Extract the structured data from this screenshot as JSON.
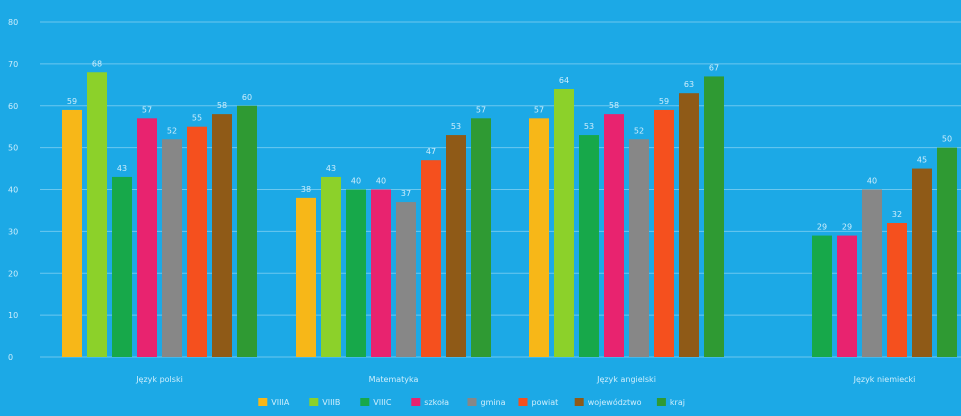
{
  "chart_data": {
    "type": "bar",
    "title": "",
    "xlabel": "",
    "ylabel": "",
    "ylim": [
      0,
      80
    ],
    "yticks": [
      0,
      10,
      20,
      30,
      40,
      50,
      60,
      70,
      80
    ],
    "grid": true,
    "legend_position": "bottom",
    "categories": [
      "Język polski",
      "Matematyka",
      "Język angielski",
      "Język niemiecki"
    ],
    "series": [
      {
        "name": "VIIIA",
        "color": "#f7b718",
        "values": [
          59,
          38,
          57,
          null
        ]
      },
      {
        "name": "VIIIB",
        "color": "#8cd12a",
        "values": [
          68,
          43,
          64,
          null
        ]
      },
      {
        "name": "VIIIC",
        "color": "#17a84a",
        "values": [
          43,
          40,
          53,
          29
        ]
      },
      {
        "name": "szkoła",
        "color": "#e8236f",
        "values": [
          57,
          40,
          58,
          29
        ]
      },
      {
        "name": "gmina",
        "color": "#878787",
        "values": [
          52,
          37,
          52,
          40
        ]
      },
      {
        "name": "powiat",
        "color": "#f5501e",
        "values": [
          55,
          47,
          59,
          32
        ]
      },
      {
        "name": "województwo",
        "color": "#8f5a17",
        "values": [
          58,
          53,
          63,
          45
        ]
      },
      {
        "name": "kraj",
        "color": "#2f9a33",
        "values": [
          60,
          57,
          67,
          50
        ]
      }
    ]
  },
  "colors": {
    "background": "#1ca9e6",
    "gridline": "#7fd0f2",
    "text": "#cfeefc"
  }
}
